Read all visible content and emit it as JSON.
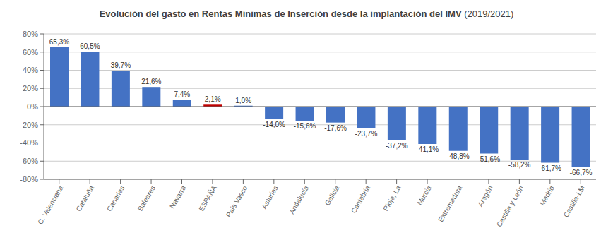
{
  "chart_data": {
    "type": "bar",
    "title": "Evolución del gasto en Rentas Mínimas de Inserción desde la implantación del IMV",
    "subtitle": "(2019/2021)",
    "categories": [
      "C. Valenciana",
      "Cataluña",
      "Canarias",
      "Baleares",
      "Navarra",
      "ESPAÑA",
      "País Vasco",
      "Asturias",
      "Andalucía",
      "Galicia",
      "Cantabria",
      "Rioja, La",
      "Murcia",
      "Extremadura",
      "Aragón",
      "Castilla y León",
      "Madrid",
      "Castilla-LM"
    ],
    "values": [
      65.3,
      60.5,
      39.7,
      21.6,
      7.4,
      2.1,
      1.0,
      -14.0,
      -15.6,
      -17.6,
      -23.7,
      -37.2,
      -41.1,
      -48.8,
      -51.6,
      -58.2,
      -61.7,
      -66.7
    ],
    "value_labels": [
      "65,3%",
      "60,5%",
      "39,7%",
      "21,6%",
      "7,4%",
      "2,1%",
      "1,0%",
      "-14,0%",
      "-15,6%",
      "-17,6%",
      "-23,7%",
      "-37,2%",
      "-41,1%",
      "-48,8%",
      "-51,6%",
      "-58,2%",
      "-61,7%",
      "-66,7%"
    ],
    "colors": [
      "#4472C4",
      "#4472C4",
      "#4472C4",
      "#4472C4",
      "#4472C4",
      "#C00000",
      "#4472C4",
      "#4472C4",
      "#4472C4",
      "#4472C4",
      "#4472C4",
      "#4472C4",
      "#4472C4",
      "#4472C4",
      "#4472C4",
      "#4472C4",
      "#4472C4",
      "#4472C4"
    ],
    "ylim": [
      -80,
      80
    ],
    "yticks": [
      {
        "value": -80,
        "label": "-80%"
      },
      {
        "value": -60,
        "label": "-60%"
      },
      {
        "value": -40,
        "label": "-40%"
      },
      {
        "value": -20,
        "label": "-20%"
      },
      {
        "value": 0,
        "label": "0%"
      },
      {
        "value": 20,
        "label": "20%"
      },
      {
        "value": 40,
        "label": "40%"
      },
      {
        "value": 60,
        "label": "60%"
      },
      {
        "value": 80,
        "label": "80%"
      }
    ],
    "grid": true,
    "data_labels": true
  }
}
